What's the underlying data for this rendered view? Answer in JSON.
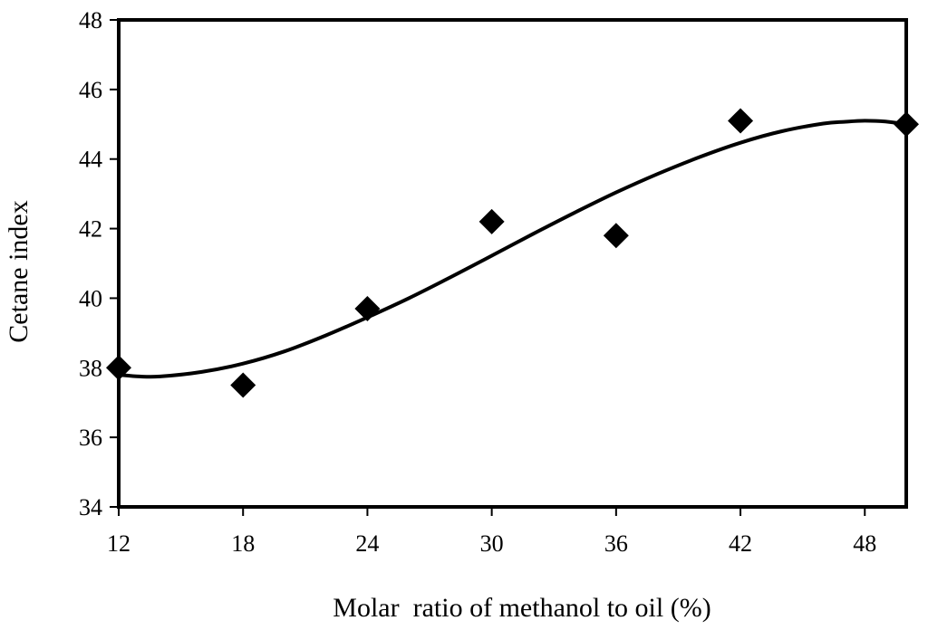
{
  "chart_data": {
    "type": "scatter",
    "title": "",
    "xlabel": "Molar  ratio of methanol to oil (%)",
    "ylabel": "Cetane index",
    "xlim": [
      12,
      50
    ],
    "ylim": [
      34,
      48
    ],
    "xticks": [
      12,
      18,
      24,
      30,
      36,
      42,
      48
    ],
    "yticks": [
      34,
      36,
      38,
      40,
      42,
      44,
      46,
      48
    ],
    "grid": false,
    "legend": "none",
    "series": [
      {
        "name": "Cetane index",
        "marker": "diamond",
        "color": "#000000",
        "x": [
          12,
          18,
          24,
          30,
          36,
          42,
          50
        ],
        "y": [
          38.0,
          37.5,
          39.7,
          42.2,
          41.8,
          45.1,
          45.0
        ]
      }
    ],
    "trendline": {
      "type": "polynomial",
      "color": "#000000",
      "x": [
        12,
        13,
        14,
        16,
        18,
        20,
        22,
        24,
        26,
        28,
        30,
        32,
        34,
        36,
        38,
        40,
        42,
        44,
        46,
        47,
        48,
        49,
        50
      ],
      "y": [
        37.8,
        37.75,
        37.75,
        37.88,
        38.12,
        38.47,
        38.93,
        39.45,
        40.0,
        40.6,
        41.22,
        41.85,
        42.46,
        43.04,
        43.57,
        44.05,
        44.47,
        44.8,
        45.02,
        45.07,
        45.1,
        45.08,
        45.0
      ]
    }
  }
}
